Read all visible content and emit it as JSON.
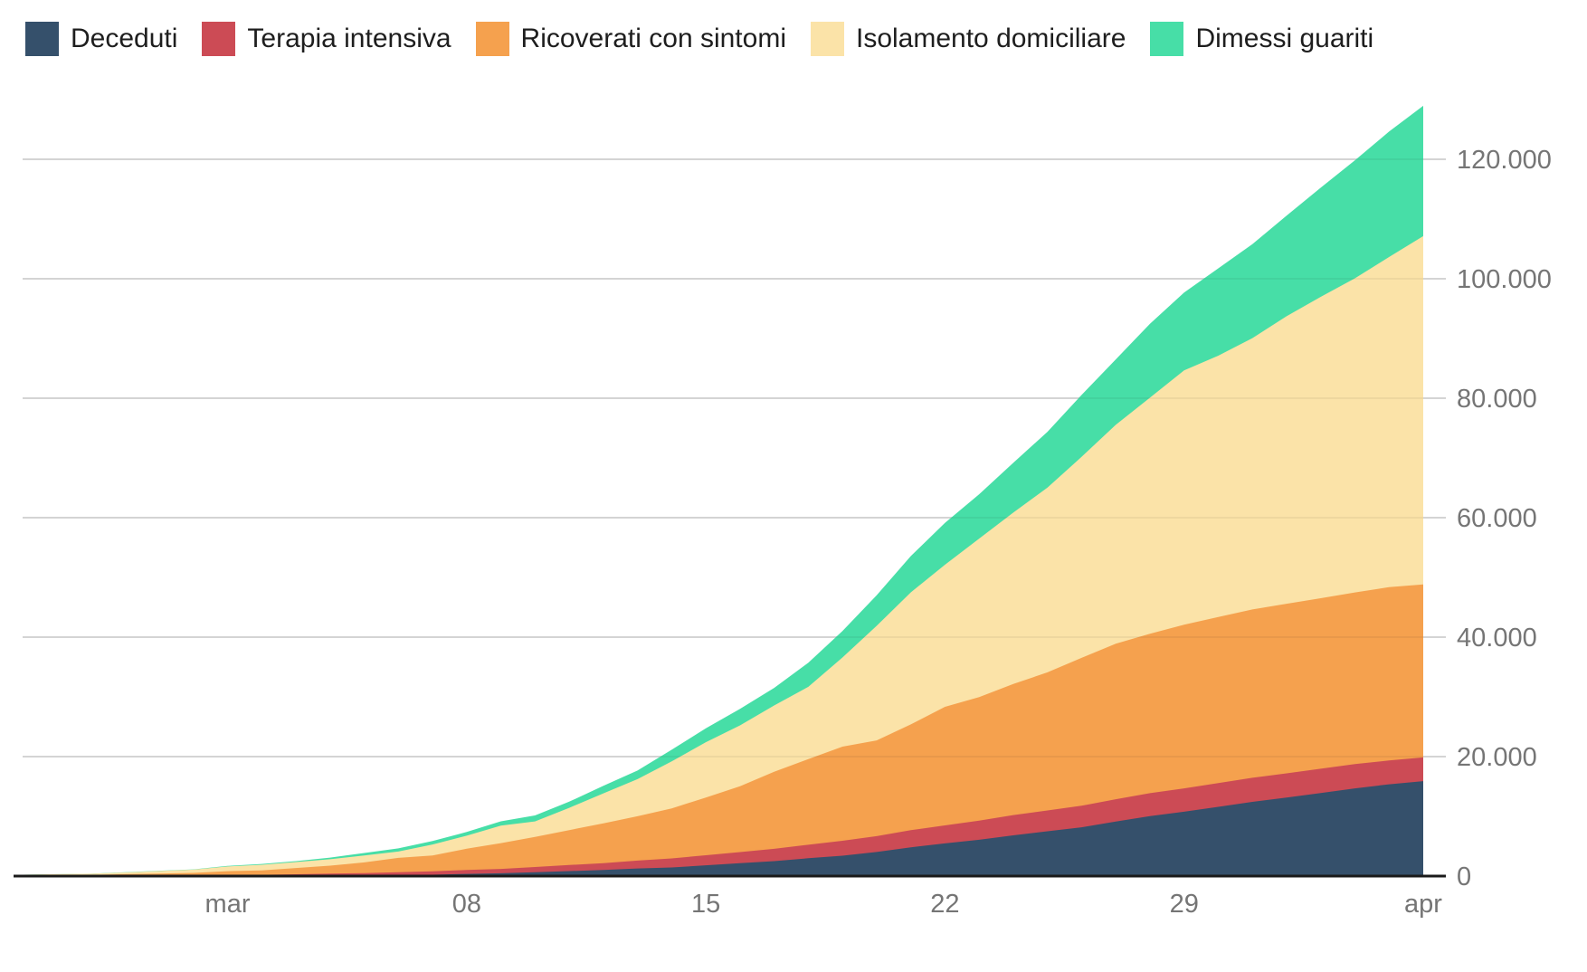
{
  "chart_data": {
    "type": "area",
    "stacked": true,
    "title": "",
    "xlabel": "",
    "ylabel": "",
    "grid": true,
    "legend_position": "top",
    "x": [
      "2020-02-24",
      "2020-02-25",
      "2020-02-26",
      "2020-02-27",
      "2020-02-28",
      "2020-02-29",
      "2020-03-01",
      "2020-03-02",
      "2020-03-03",
      "2020-03-04",
      "2020-03-05",
      "2020-03-06",
      "2020-03-07",
      "2020-03-08",
      "2020-03-09",
      "2020-03-10",
      "2020-03-11",
      "2020-03-12",
      "2020-03-13",
      "2020-03-14",
      "2020-03-15",
      "2020-03-16",
      "2020-03-17",
      "2020-03-18",
      "2020-03-19",
      "2020-03-20",
      "2020-03-21",
      "2020-03-22",
      "2020-03-23",
      "2020-03-24",
      "2020-03-25",
      "2020-03-26",
      "2020-03-27",
      "2020-03-28",
      "2020-03-29",
      "2020-03-30",
      "2020-03-31",
      "2020-04-01",
      "2020-04-02",
      "2020-04-03",
      "2020-04-04",
      "2020-04-05"
    ],
    "series": [
      {
        "name": "Deceduti",
        "color": "#35506B",
        "values": [
          7,
          10,
          12,
          17,
          21,
          29,
          34,
          52,
          79,
          107,
          148,
          197,
          233,
          366,
          463,
          631,
          827,
          1016,
          1266,
          1441,
          1809,
          2158,
          2503,
          2978,
          3405,
          4032,
          4825,
          5476,
          6077,
          6820,
          7503,
          8165,
          9134,
          10023,
          10779,
          11591,
          12428,
          13155,
          13915,
          14681,
          15362,
          15887
        ]
      },
      {
        "name": "Terapia intensiva",
        "color": "#CC4B55",
        "values": [
          26,
          35,
          36,
          56,
          64,
          105,
          140,
          166,
          229,
          295,
          351,
          462,
          567,
          650,
          733,
          877,
          1028,
          1153,
          1328,
          1518,
          1672,
          1851,
          2060,
          2257,
          2498,
          2655,
          2857,
          3009,
          3204,
          3396,
          3489,
          3612,
          3732,
          3856,
          3906,
          3981,
          4023,
          4035,
          4053,
          4068,
          3994,
          3977
        ]
      },
      {
        "name": "Ricoverati con sintomi",
        "color": "#F5A14E",
        "values": [
          101,
          114,
          128,
          248,
          345,
          401,
          639,
          742,
          1034,
          1346,
          1790,
          2394,
          2651,
          3557,
          4316,
          5038,
          5838,
          6650,
          7426,
          8372,
          9663,
          11025,
          12894,
          14363,
          15757,
          16020,
          17708,
          19846,
          20692,
          21937,
          23112,
          24753,
          26029,
          26676,
          27386,
          27795,
          28192,
          28403,
          28540,
          28741,
          29010,
          28949
        ]
      },
      {
        "name": "Isolamento domiciliare",
        "color": "#FBE3A8",
        "values": [
          94,
          162,
          221,
          284,
          412,
          543,
          798,
          927,
          1000,
          1065,
          1155,
          1060,
          1843,
          2180,
          2936,
          2599,
          3724,
          5036,
          6201,
          7860,
          9268,
          10197,
          11108,
          12090,
          14935,
          19185,
          22116,
          23783,
          26522,
          28697,
          30920,
          33648,
          36653,
          39533,
          42588,
          43752,
          45420,
          48134,
          50456,
          52579,
          55270,
          58320
        ]
      },
      {
        "name": "Dimessi guariti",
        "color": "#47DEA7",
        "values": [
          1,
          1,
          3,
          45,
          46,
          50,
          83,
          149,
          160,
          276,
          414,
          523,
          589,
          622,
          724,
          1004,
          1045,
          1258,
          1439,
          1966,
          2335,
          2749,
          2941,
          4025,
          4440,
          5129,
          6072,
          7024,
          7432,
          8326,
          9362,
          10361,
          10950,
          12384,
          13030,
          14620,
          15729,
          16847,
          18278,
          19758,
          20996,
          21815
        ]
      }
    ],
    "x_axis": {
      "ticks": [
        {
          "index": 6,
          "label": "mar"
        },
        {
          "index": 13,
          "label": "08"
        },
        {
          "index": 20,
          "label": "15"
        },
        {
          "index": 27,
          "label": "22"
        },
        {
          "index": 34,
          "label": "29"
        },
        {
          "index": 41,
          "label": "apr"
        }
      ]
    },
    "y_axis": {
      "min": 0,
      "tick_interval": 20000,
      "max_tick": 120000,
      "ticks": [
        {
          "value": 0,
          "label": "0"
        },
        {
          "value": 20000,
          "label": "20.000"
        },
        {
          "value": 40000,
          "label": "40.000"
        },
        {
          "value": 60000,
          "label": "60.000"
        },
        {
          "value": 80000,
          "label": "80.000"
        },
        {
          "value": 100000,
          "label": "100.000"
        },
        {
          "value": 120000,
          "label": "120.000"
        }
      ]
    }
  },
  "colors": {
    "background": "#ffffff",
    "gridline": "#e0e0e0",
    "gridline_overlay": "rgba(0,0,0,0.05)",
    "axis_line": "#1a1a1a",
    "axis_label": "#757575",
    "legend_text": "#1e1e1e"
  }
}
